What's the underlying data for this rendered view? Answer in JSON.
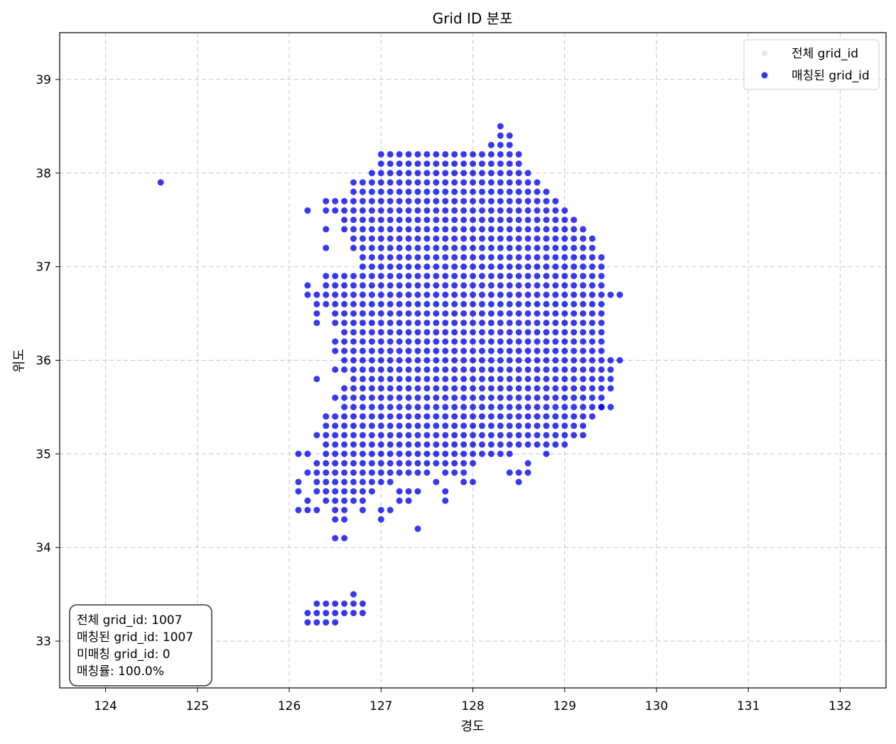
{
  "chart_data": {
    "type": "scatter",
    "title": "Grid ID 분포",
    "xlabel": "경도",
    "ylabel": "위도",
    "xlim": [
      123.5,
      132.5
    ],
    "ylim": [
      32.5,
      39.5
    ],
    "xticks": [
      "124",
      "125",
      "126",
      "127",
      "128",
      "129",
      "130",
      "131",
      "132"
    ],
    "yticks": [
      "33",
      "34",
      "35",
      "36",
      "37",
      "38",
      "39"
    ],
    "grid": true,
    "legend_position": "top-right",
    "series": [
      {
        "name": "전체 grid_id",
        "color": "#d9d9d9",
        "points": []
      },
      {
        "name": "매칭된 grid_id",
        "color": "#0000ee",
        "row_lat": [
          38.5,
          38.4,
          38.3,
          38.2,
          38.1,
          38.0,
          37.9,
          37.8,
          37.7,
          37.6,
          37.5,
          37.4,
          37.3,
          37.2,
          37.1,
          37.0,
          36.9,
          36.8,
          36.7,
          36.6,
          36.5,
          36.4,
          36.3,
          36.2,
          36.1,
          36.0,
          35.9,
          35.8,
          35.7,
          35.6,
          35.5,
          35.4,
          35.3,
          35.2,
          35.1,
          35.0,
          34.9,
          34.8,
          34.7,
          34.6,
          34.5,
          34.4,
          34.3,
          34.2,
          34.1,
          33.5,
          33.4,
          33.3,
          33.2
        ],
        "row_lon_ranges": [
          [
            [
              128.3,
              128.3
            ]
          ],
          [
            [
              128.3,
              128.4
            ]
          ],
          [
            [
              128.2,
              128.4
            ]
          ],
          [
            [
              127.0,
              128.5
            ]
          ],
          [
            [
              127.0,
              128.5
            ]
          ],
          [
            [
              126.9,
              128.6
            ]
          ],
          [
            [
              124.6,
              124.6
            ],
            [
              126.7,
              128.7
            ]
          ],
          [
            [
              126.7,
              128.8
            ]
          ],
          [
            [
              126.4,
              128.9
            ]
          ],
          [
            [
              126.2,
              126.2
            ],
            [
              126.4,
              129.0
            ]
          ],
          [
            [
              126.6,
              129.1
            ]
          ],
          [
            [
              126.4,
              126.4
            ],
            [
              126.6,
              129.2
            ]
          ],
          [
            [
              126.7,
              129.3
            ]
          ],
          [
            [
              126.4,
              126.4
            ],
            [
              126.7,
              129.3
            ]
          ],
          [
            [
              126.8,
              129.4
            ]
          ],
          [
            [
              126.8,
              129.4
            ]
          ],
          [
            [
              126.4,
              129.4
            ]
          ],
          [
            [
              126.2,
              126.2
            ],
            [
              126.4,
              129.4
            ]
          ],
          [
            [
              126.2,
              129.6
            ]
          ],
          [
            [
              126.3,
              129.4
            ]
          ],
          [
            [
              126.3,
              126.3
            ],
            [
              126.5,
              129.4
            ]
          ],
          [
            [
              126.3,
              126.3
            ],
            [
              126.5,
              129.4
            ]
          ],
          [
            [
              126.6,
              129.4
            ]
          ],
          [
            [
              126.5,
              129.4
            ]
          ],
          [
            [
              126.5,
              129.4
            ]
          ],
          [
            [
              126.6,
              129.6
            ]
          ],
          [
            [
              126.5,
              129.5
            ]
          ],
          [
            [
              126.3,
              126.3
            ],
            [
              126.7,
              129.5
            ]
          ],
          [
            [
              126.6,
              129.5
            ]
          ],
          [
            [
              126.5,
              129.4
            ]
          ],
          [
            [
              126.6,
              129.4
            ],
            [
              129.4,
              129.5
            ]
          ],
          [
            [
              126.4,
              129.3
            ]
          ],
          [
            [
              126.4,
              129.2
            ]
          ],
          [
            [
              126.3,
              129.2
            ]
          ],
          [
            [
              126.4,
              129.0
            ]
          ],
          [
            [
              126.1,
              126.2
            ],
            [
              126.4,
              128.4
            ],
            [
              128.8,
              128.8
            ]
          ],
          [
            [
              126.3,
              128.0
            ],
            [
              128.6,
              128.6
            ]
          ],
          [
            [
              126.2,
              127.5
            ],
            [
              127.7,
              127.9
            ],
            [
              128.4,
              128.6
            ]
          ],
          [
            [
              126.1,
              126.1
            ],
            [
              126.3,
              127.1
            ],
            [
              127.6,
              127.6
            ],
            [
              127.9,
              128.0
            ],
            [
              128.5,
              128.5
            ]
          ],
          [
            [
              126.1,
              126.1
            ],
            [
              126.3,
              126.9
            ],
            [
              127.2,
              127.4
            ],
            [
              127.7,
              127.7
            ]
          ],
          [
            [
              126.2,
              126.2
            ],
            [
              126.4,
              126.8
            ],
            [
              127.2,
              127.3
            ],
            [
              127.7,
              127.7
            ]
          ],
          [
            [
              126.1,
              126.3
            ],
            [
              126.5,
              126.6
            ],
            [
              126.8,
              126.8
            ],
            [
              127.0,
              127.1
            ]
          ],
          [
            [
              126.5,
              126.6
            ],
            [
              127.0,
              127.0
            ]
          ],
          [
            [
              127.4,
              127.4
            ]
          ],
          [
            [
              126.5,
              126.6
            ]
          ],
          [
            [
              126.7,
              126.7
            ]
          ],
          [
            [
              126.3,
              126.8
            ]
          ],
          [
            [
              126.2,
              126.8
            ]
          ],
          [
            [
              126.2,
              126.5
            ]
          ]
        ]
      }
    ],
    "stats": {
      "total": "전체 grid_id: 1007",
      "matched": "매칭된 grid_id: 1007",
      "unmatched": "미매칭 grid_id: 0",
      "rate": "매칭률: 100.0%"
    }
  }
}
